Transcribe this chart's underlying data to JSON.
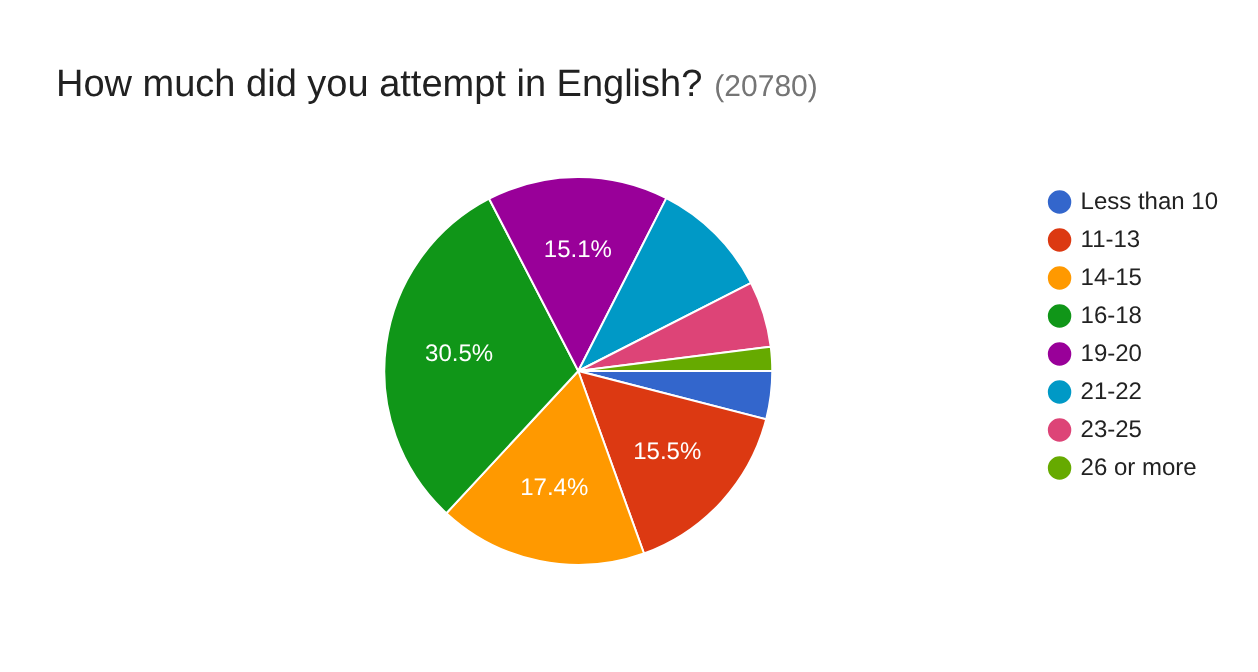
{
  "chart_data": {
    "type": "pie",
    "title": "How much did you attempt in English?",
    "subtitle": "(20780)",
    "categories": [
      "Less than 10",
      "11-13",
      "14-15",
      "16-18",
      "19-20",
      "21-22",
      "23-25",
      "26 or more"
    ],
    "values": [
      4.0,
      15.5,
      17.4,
      30.5,
      15.1,
      10.0,
      5.5,
      2.0
    ],
    "value_labels": [
      null,
      "15.5%",
      "17.4%",
      "30.5%",
      "15.1%",
      null,
      null,
      null
    ],
    "colors": [
      "#3366cc",
      "#dc3912",
      "#ff9900",
      "#109618",
      "#990099",
      "#0099c6",
      "#dd4477",
      "#66aa00"
    ],
    "legend": "right"
  }
}
